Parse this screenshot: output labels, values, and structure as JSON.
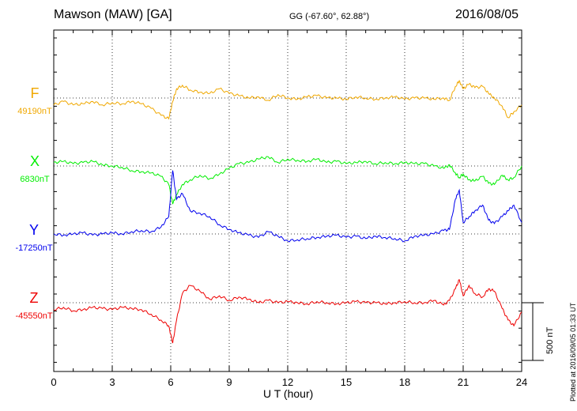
{
  "header": {
    "station": "Mawson (MAW)  [GA]",
    "coords": "GG (-67.60°,  62.88°)",
    "date": "2016/08/05"
  },
  "footer": {
    "plotted": "Plotted at 2016/09/05 01:33 UT",
    "scale_label": "500 nT"
  },
  "components": [
    {
      "name": "F",
      "baseline": "49190nT",
      "color": "#f0a800"
    },
    {
      "name": "X",
      "baseline": "6830nT",
      "color": "#00ee00"
    },
    {
      "name": "Y",
      "baseline": "-17250nT",
      "color": "#0000ee"
    },
    {
      "name": "Z",
      "baseline": "-45550nT",
      "color": "#ee0000"
    }
  ],
  "chart_data": {
    "type": "line",
    "xlabel": "U T (hour)",
    "xlim": [
      0,
      24
    ],
    "xticks": [
      "0",
      "3",
      "6",
      "9",
      "12",
      "15",
      "18",
      "21",
      "24"
    ],
    "scale_bar_nT": 500,
    "grid": "dotted vertical lines every 3 hours; dotted horizontal baseline per component",
    "series": [
      {
        "name": "F",
        "baseline_nT": 49190,
        "x": [
          0,
          0.5,
          1,
          1.5,
          2,
          2.5,
          3,
          3.5,
          4,
          4.5,
          5,
          5.5,
          5.9,
          6.1,
          6.3,
          6.6,
          7,
          7.5,
          8,
          8.5,
          9,
          9.5,
          10,
          10.5,
          11,
          11.5,
          12,
          12.5,
          13,
          13.5,
          14,
          14.5,
          15,
          15.5,
          16,
          16.5,
          17,
          17.5,
          18,
          18.5,
          19,
          19.5,
          20,
          20.3,
          20.6,
          20.8,
          21,
          21.3,
          21.6,
          22,
          22.3,
          22.6,
          23,
          23.3,
          23.6,
          24
        ],
        "y": [
          -60,
          -30,
          -60,
          -50,
          -30,
          -60,
          -40,
          -50,
          -30,
          -50,
          -90,
          -150,
          -180,
          -30,
          80,
          110,
          70,
          50,
          40,
          80,
          40,
          20,
          0,
          10,
          -20,
          30,
          0,
          -10,
          10,
          20,
          0,
          0,
          -10,
          10,
          0,
          -10,
          0,
          10,
          -10,
          0,
          0,
          -10,
          0,
          -20,
          100,
          150,
          80,
          120,
          90,
          100,
          40,
          0,
          -70,
          -170,
          -120,
          -60
        ]
      },
      {
        "name": "X",
        "baseline_nT": 6830,
        "x": [
          0,
          0.5,
          1,
          1.5,
          2,
          2.5,
          3,
          3.5,
          4,
          4.5,
          5,
          5.5,
          5.9,
          6.1,
          6.3,
          6.6,
          7,
          7.5,
          8,
          8.5,
          9,
          9.5,
          10,
          10.5,
          11,
          11.5,
          12,
          12.5,
          13,
          13.5,
          14,
          14.5,
          15,
          15.5,
          16,
          16.5,
          17,
          17.5,
          18,
          18.5,
          19,
          19.5,
          20,
          20.3,
          20.6,
          20.8,
          21,
          21.3,
          21.6,
          22,
          22.3,
          22.6,
          23,
          23.3,
          23.6,
          24
        ],
        "y": [
          30,
          40,
          20,
          30,
          40,
          10,
          0,
          -10,
          -40,
          -50,
          -60,
          -90,
          -160,
          -330,
          -250,
          -160,
          -120,
          -80,
          -110,
          -70,
          -20,
          20,
          30,
          60,
          80,
          30,
          60,
          50,
          40,
          60,
          30,
          40,
          20,
          30,
          40,
          20,
          30,
          20,
          30,
          20,
          20,
          0,
          -20,
          10,
          -60,
          -100,
          -70,
          -120,
          -130,
          -90,
          -150,
          -160,
          -80,
          -120,
          -100,
          0
        ]
      },
      {
        "name": "Y",
        "baseline_nT": -17250,
        "x": [
          0,
          0.5,
          1,
          1.5,
          2,
          2.5,
          3,
          3.5,
          4,
          4.5,
          5,
          5.5,
          5.9,
          6.1,
          6.3,
          6.6,
          7,
          7.5,
          8,
          8.5,
          9,
          9.5,
          10,
          10.5,
          11,
          11.5,
          12,
          12.5,
          13,
          13.5,
          14,
          14.5,
          15,
          15.5,
          16,
          16.5,
          17,
          17.5,
          18,
          18.5,
          19,
          19.5,
          20,
          20.3,
          20.6,
          20.8,
          21,
          21.3,
          21.6,
          22,
          22.3,
          22.6,
          23,
          23.3,
          23.6,
          24
        ],
        "y": [
          0,
          -10,
          0,
          10,
          -10,
          0,
          10,
          0,
          20,
          30,
          20,
          60,
          150,
          550,
          300,
          350,
          200,
          180,
          150,
          80,
          40,
          10,
          -10,
          -30,
          20,
          -20,
          -60,
          -50,
          -40,
          -30,
          -20,
          -10,
          -30,
          -20,
          -40,
          -20,
          -30,
          -40,
          -60,
          -20,
          -10,
          0,
          30,
          40,
          300,
          380,
          100,
          150,
          200,
          250,
          120,
          90,
          150,
          200,
          250,
          100
        ]
      },
      {
        "name": "Z",
        "baseline_nT": -45550,
        "x": [
          0,
          0.5,
          1,
          1.5,
          2,
          2.5,
          3,
          3.5,
          4,
          4.5,
          5,
          5.5,
          5.9,
          6.1,
          6.3,
          6.6,
          7,
          7.5,
          8,
          8.5,
          9,
          9.5,
          10,
          10.5,
          11,
          11.5,
          12,
          12.5,
          13,
          13.5,
          14,
          14.5,
          15,
          15.5,
          16,
          16.5,
          17,
          17.5,
          18,
          18.5,
          19,
          19.5,
          20,
          20.3,
          20.6,
          20.8,
          21,
          21.3,
          21.6,
          22,
          22.3,
          22.6,
          23,
          23.3,
          23.6,
          24
        ],
        "y": [
          -60,
          -40,
          -70,
          -60,
          -40,
          -50,
          -60,
          -40,
          -50,
          -60,
          -100,
          -150,
          -200,
          -350,
          -150,
          80,
          150,
          100,
          30,
          60,
          20,
          50,
          30,
          0,
          20,
          0,
          10,
          0,
          -10,
          10,
          0,
          -10,
          0,
          10,
          0,
          0,
          -10,
          0,
          10,
          0,
          0,
          20,
          -20,
          20,
          120,
          200,
          60,
          150,
          80,
          50,
          120,
          100,
          -50,
          -150,
          -200,
          -80
        ]
      }
    ]
  }
}
